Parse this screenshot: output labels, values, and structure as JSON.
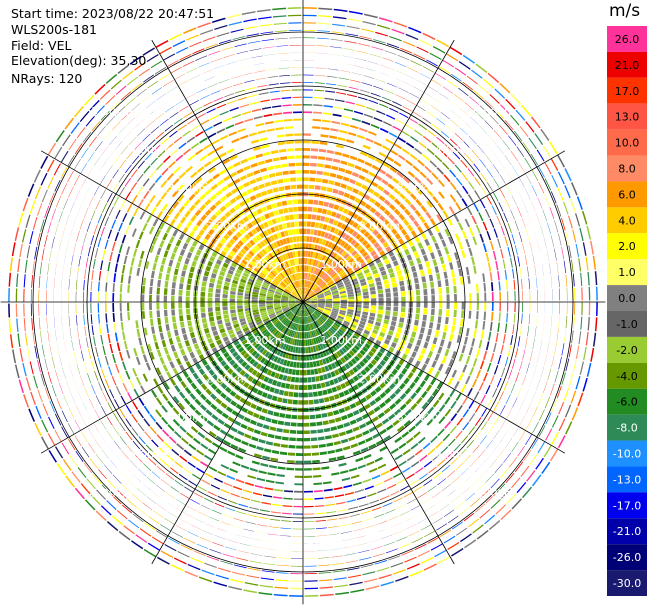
{
  "header": {
    "start_time": "Start time: 2023/08/22 20:47:51",
    "instrument": "WLS200s-181",
    "field": "Field: VEL",
    "elevation": "Elevation(deg): 35.30",
    "nrays": "NRays: 120"
  },
  "colorbar": {
    "unit": "m/s",
    "bins": [
      {
        "label": "26.0",
        "color": "#ff3399"
      },
      {
        "label": "21.0",
        "color": "#ee0000"
      },
      {
        "label": "17.0",
        "color": "#ff3300"
      },
      {
        "label": "13.0",
        "color": "#ff5544"
      },
      {
        "label": "10.0",
        "color": "#ff6a4a"
      },
      {
        "label": "8.0",
        "color": "#ff8a66"
      },
      {
        "label": "6.0",
        "color": "#ff9900"
      },
      {
        "label": "4.0",
        "color": "#ffcc00"
      },
      {
        "label": "2.0",
        "color": "#ffff00"
      },
      {
        "label": "1.0",
        "color": "#ffff66"
      },
      {
        "label": "0.0",
        "color": "#808080"
      },
      {
        "label": "-1.0",
        "color": "#666666"
      },
      {
        "label": "-2.0",
        "color": "#99cc33"
      },
      {
        "label": "-4.0",
        "color": "#669900"
      },
      {
        "label": "-6.0",
        "color": "#228b22"
      },
      {
        "label": "-8.0",
        "color": "#2e8b57"
      },
      {
        "label": "-10.0",
        "color": "#1e90ff"
      },
      {
        "label": "-13.0",
        "color": "#0066ff"
      },
      {
        "label": "-17.0",
        "color": "#0000ee"
      },
      {
        "label": "-21.0",
        "color": "#0000aa"
      },
      {
        "label": "-26.0",
        "color": "#000077"
      },
      {
        "label": "-30.0",
        "color": "#191970"
      }
    ]
  },
  "chart_data": {
    "type": "heatmap",
    "projection": "polar PPI (plan position indicator)",
    "field": "VEL",
    "unit": "m/s",
    "elevation_deg": 35.3,
    "n_rays": 120,
    "range_rings_km": [
      1.0,
      2.0,
      3.0,
      4.0,
      5.0
    ],
    "range_ring_labels": [
      "1.00km",
      "2.00km",
      "3.00km",
      "4.00km",
      "5.00km"
    ],
    "max_range_km": 5.6,
    "radial_spokes_deg": [
      0,
      30,
      60,
      90,
      120,
      150,
      180,
      210,
      240,
      270,
      300,
      330
    ],
    "ring_labels_azimuths_deg": [
      45,
      135,
      225,
      315
    ],
    "dominant_velocity_by_sector": [
      {
        "azimuth_from_deg": 0,
        "azimuth_to_deg": 60,
        "velocity_ms": 6.0
      },
      {
        "azimuth_from_deg": 60,
        "azimuth_to_deg": 120,
        "velocity_ms": 0.0
      },
      {
        "azimuth_from_deg": 120,
        "azimuth_to_deg": 240,
        "velocity_ms": -6.0
      },
      {
        "azimuth_from_deg": 240,
        "azimuth_to_deg": 300,
        "velocity_ms": -2.0
      },
      {
        "azimuth_from_deg": 300,
        "azimuth_to_deg": 360,
        "velocity_ms": 4.0
      }
    ],
    "clean_range_limit_km": 3.5,
    "noise_beyond_km": 3.5
  }
}
